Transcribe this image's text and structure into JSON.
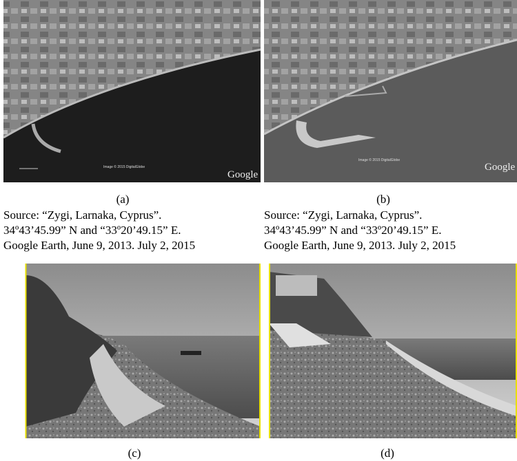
{
  "panels": [
    {
      "label": "(a)",
      "watermark": "Image © 2015 DigitalGlobe",
      "logo": "Google",
      "source": [
        "Source: “Zygi, Larnaka, Cyprus”.",
        "34º43’45.99” N and “33º20’49.15” E.",
        "Google Earth, June 9, 2013. July 2, 2015"
      ]
    },
    {
      "label": "(b)",
      "watermark": "Image © 2015 DigitalGlobe",
      "logo": "Google",
      "source": [
        "Source: “Zygi, Larnaka, Cyprus”.",
        "34º43’45.99” N and “33º20’49.15” E.",
        "Google Earth, June 9, 2013. July 2, 2015"
      ]
    },
    {
      "label": "(c)"
    },
    {
      "label": "(d)"
    }
  ]
}
